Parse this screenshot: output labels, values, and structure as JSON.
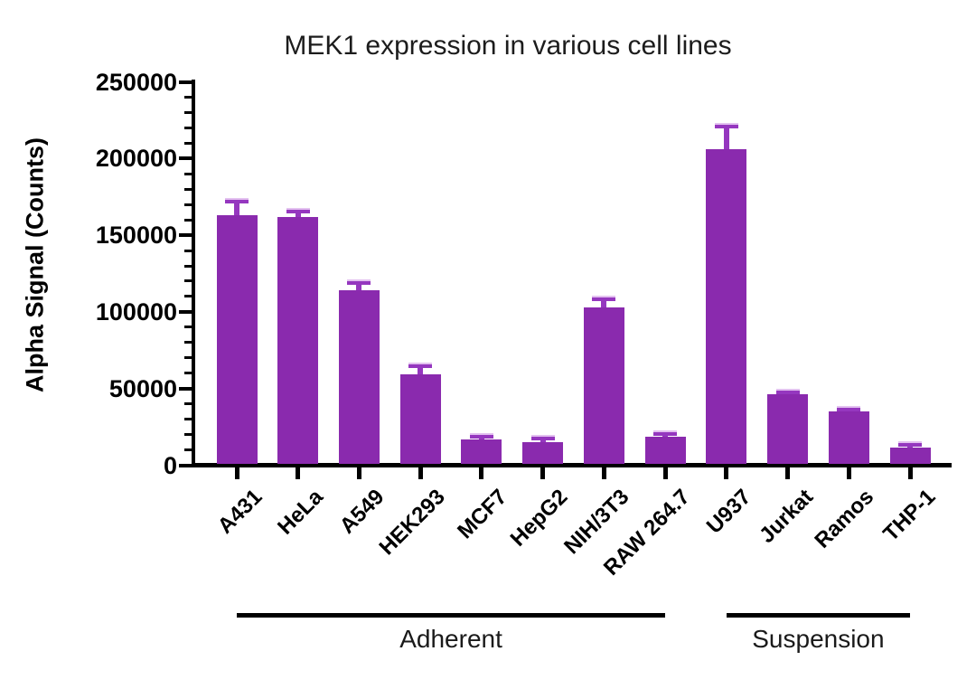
{
  "page": {
    "background": "#ffffff"
  },
  "chart_data": {
    "type": "bar",
    "title": "MEK1 expression in various cell lines",
    "xlabel": "",
    "ylabel": "Alpha Signal (Counts)",
    "ylim": [
      0,
      250000
    ],
    "ytick_interval": 50000,
    "yminor_tick_interval": 10000,
    "ytick_labels": [
      "0",
      "50000",
      "100000",
      "150000",
      "200000",
      "250000"
    ],
    "grid": false,
    "legend": "none",
    "bar_color": "#8A2AAE",
    "error_bar_color": "#9537BF",
    "error_cap_highlight": "#E3C1F0",
    "axis_color": "#000000",
    "categories": [
      "A431",
      "HeLa",
      "A549",
      "HEK293",
      "MCF7",
      "HepG2",
      "NIH/3T3",
      "RAW 264.7",
      "U937",
      "Jurkat",
      "Ramos",
      "THP-1"
    ],
    "series": [
      {
        "name": "Alpha Signal (Counts)",
        "values": [
          163000,
          162000,
          114000,
          59500,
          17000,
          14800,
          103000,
          18500,
          206000,
          46000,
          35000,
          11500
        ],
        "errors_plus": [
          9500,
          4000,
          5500,
          5500,
          2200,
          3300,
          6000,
          2300,
          15500,
          2000,
          1900,
          2500
        ]
      }
    ],
    "groups": [
      {
        "label": "Adherent",
        "start_index": 0,
        "end_index": 7
      },
      {
        "label": "Suspension",
        "start_index": 8,
        "end_index": 11
      }
    ]
  }
}
